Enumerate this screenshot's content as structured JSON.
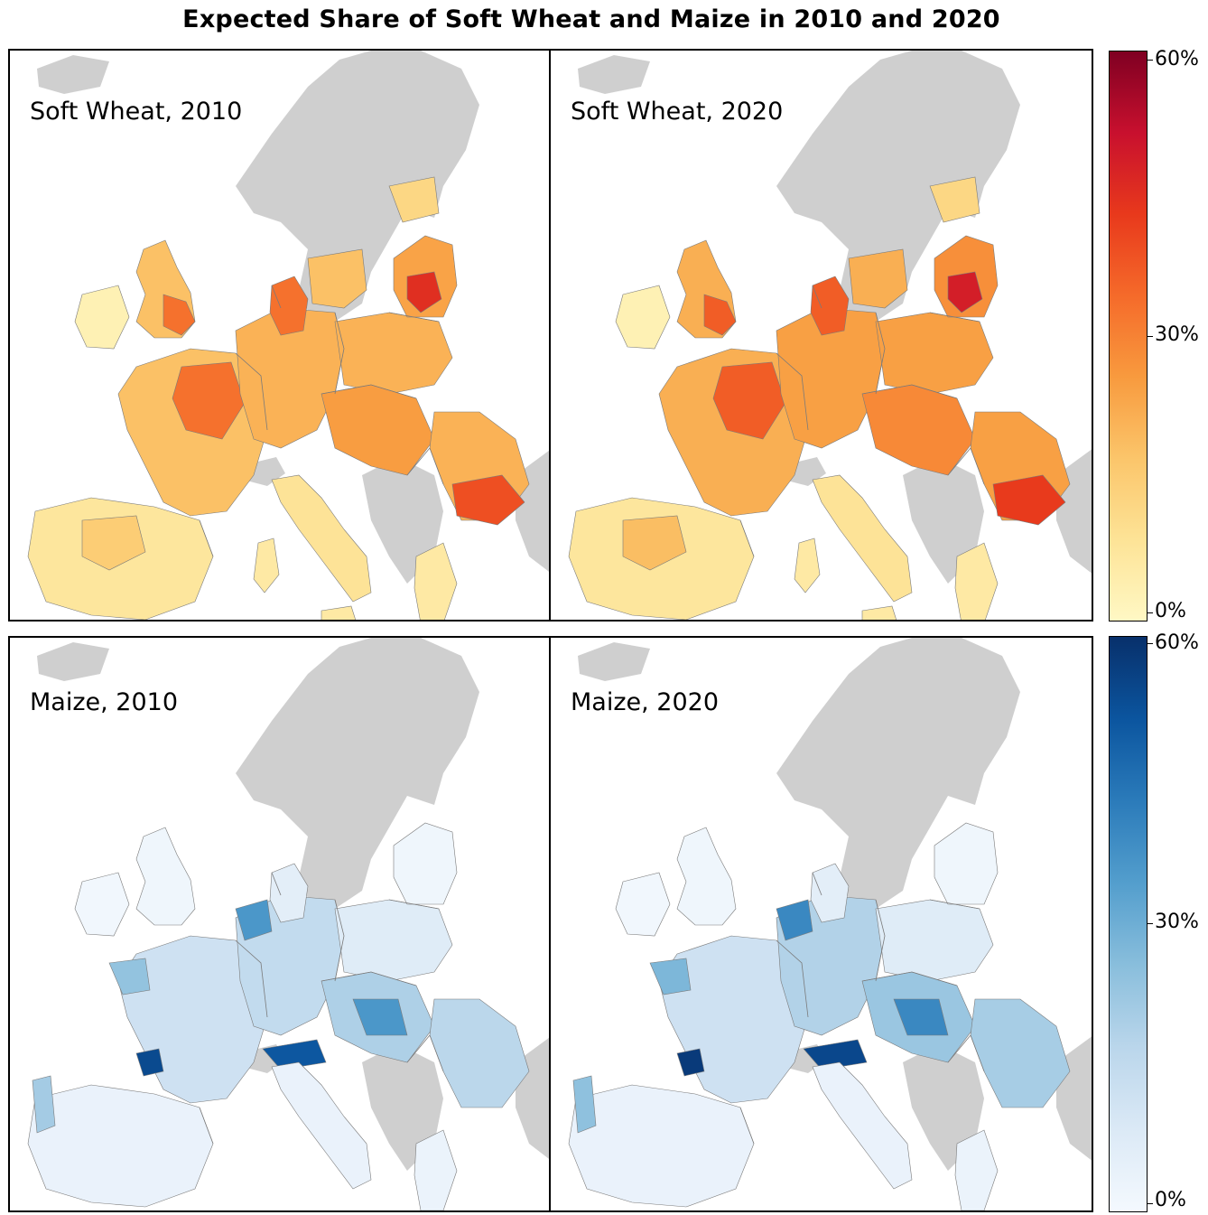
{
  "title": "Expected Share of Soft Wheat and Maize in 2010 and 2020",
  "panels": [
    {
      "label": "Soft Wheat, 2010",
      "crop": "wheat"
    },
    {
      "label": "Soft Wheat, 2020",
      "crop": "wheat"
    },
    {
      "label": "Maize, 2010",
      "crop": "maize"
    },
    {
      "label": "Maize, 2020",
      "crop": "maize"
    }
  ],
  "legends": {
    "wheat": {
      "max": "60%",
      "mid": "30%",
      "min": "0%",
      "colors": [
        "#7f0022",
        "#c8102e",
        "#e8391c",
        "#f56a2a",
        "#f89a3e",
        "#fbc56a",
        "#fde396",
        "#fff8c4"
      ]
    },
    "maize": {
      "max": "60%",
      "mid": "30%",
      "min": "0%",
      "colors": [
        "#08306b",
        "#0b559f",
        "#2b7bba",
        "#539ecd",
        "#89bedc",
        "#bad6eb",
        "#dbe9f6",
        "#f4f9fe"
      ]
    }
  },
  "colors": {
    "land_no_data": "#cfcfcf",
    "border": "#7a7a7a",
    "frame": "#000000"
  }
}
